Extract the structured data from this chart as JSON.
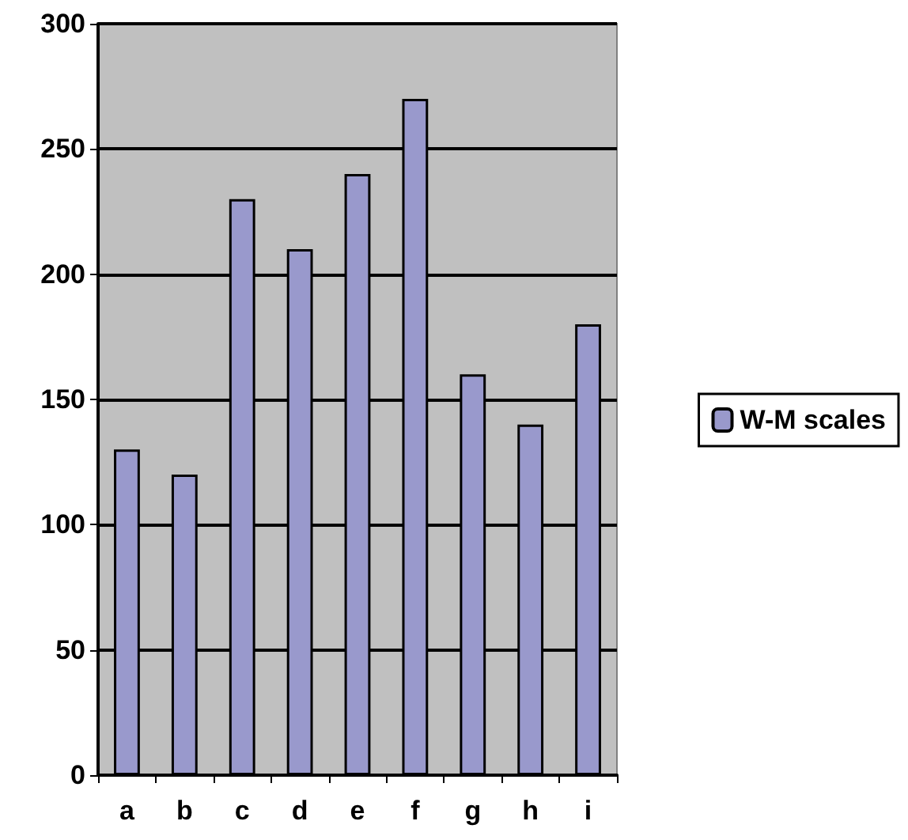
{
  "chart_data": {
    "type": "bar",
    "categories": [
      "a",
      "b",
      "c",
      "d",
      "e",
      "f",
      "g",
      "h",
      "i"
    ],
    "series": [
      {
        "name": "W-M scales",
        "color": "#9999cc",
        "values": [
          130,
          120,
          230,
          210,
          240,
          270,
          160,
          140,
          180
        ]
      }
    ],
    "ylim": [
      0,
      300
    ],
    "yticks": [
      0,
      50,
      100,
      150,
      200,
      250,
      300
    ],
    "grid": "y",
    "legend": "right"
  }
}
